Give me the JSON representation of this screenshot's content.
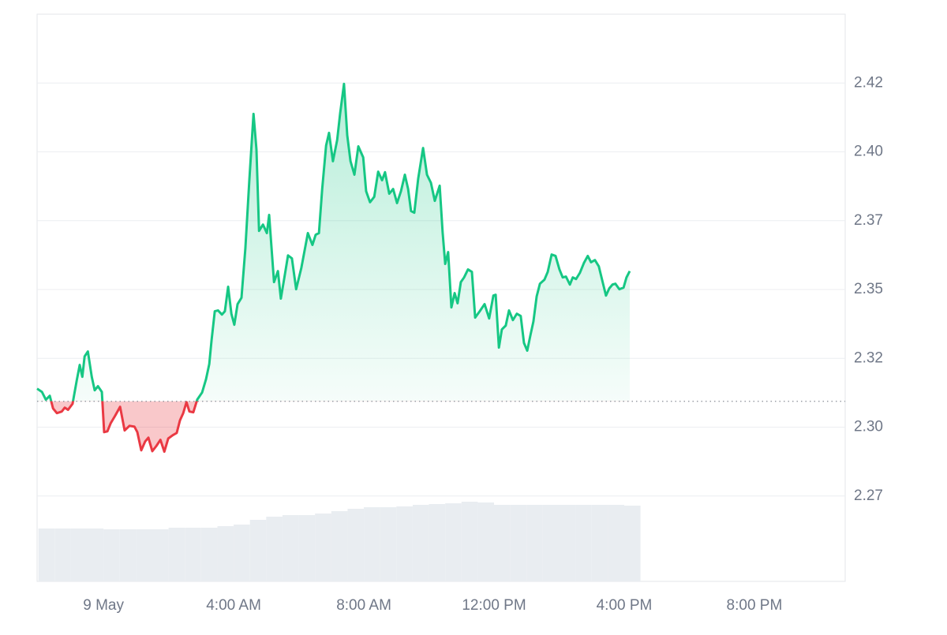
{
  "chart_data": {
    "type": "line",
    "x": [
      -2.04,
      -1.89,
      -1.77,
      -1.65,
      -1.55,
      -1.43,
      -1.28,
      -1.19,
      -1.09,
      -0.95,
      -0.82,
      -0.73,
      -0.65,
      -0.58,
      -0.48,
      -0.36,
      -0.27,
      -0.17,
      -0.05,
      0.02,
      0.12,
      0.22,
      0.36,
      0.51,
      0.65,
      0.8,
      0.95,
      1.04,
      1.16,
      1.28,
      1.38,
      1.5,
      1.62,
      1.75,
      1.87,
      1.99,
      2.13,
      2.25,
      2.35,
      2.45,
      2.55,
      2.64,
      2.76,
      2.88,
      3.03,
      3.15,
      3.25,
      3.32,
      3.42,
      3.52,
      3.64,
      3.73,
      3.83,
      3.93,
      4.02,
      4.12,
      4.24,
      4.36,
      4.48,
      4.61,
      4.7,
      4.78,
      4.9,
      5.02,
      5.09,
      5.24,
      5.36,
      5.45,
      5.58,
      5.67,
      5.79,
      5.92,
      6.08,
      6.28,
      6.42,
      6.52,
      6.62,
      6.72,
      6.84,
      6.93,
      7.05,
      7.18,
      7.27,
      7.39,
      7.49,
      7.59,
      7.71,
      7.83,
      7.98,
      8.07,
      8.19,
      8.32,
      8.44,
      8.56,
      8.65,
      8.78,
      8.9,
      9.02,
      9.14,
      9.26,
      9.36,
      9.45,
      9.55,
      9.67,
      9.82,
      9.94,
      10.06,
      10.18,
      10.33,
      10.42,
      10.5,
      10.59,
      10.69,
      10.79,
      10.88,
      10.98,
      11.08,
      11.2,
      11.32,
      11.42,
      11.56,
      11.71,
      11.85,
      11.98,
      12.05,
      12.15,
      12.24,
      12.36,
      12.46,
      12.58,
      12.7,
      12.82,
      12.92,
      13.02,
      13.12,
      13.21,
      13.31,
      13.41,
      13.55,
      13.65,
      13.77,
      13.89,
      14.01,
      14.11,
      14.21,
      14.33,
      14.42,
      14.52,
      14.64,
      14.76,
      14.88,
      14.98,
      15.1,
      15.22,
      15.35,
      15.44,
      15.54,
      15.64,
      15.73,
      15.85,
      15.98,
      16.07,
      16.17
    ],
    "values": [
      2.314,
      2.3128,
      2.31,
      2.3114,
      2.3068,
      2.3051,
      2.3057,
      2.3071,
      2.3063,
      2.3085,
      2.3171,
      2.3226,
      2.3183,
      2.3257,
      2.3275,
      2.3183,
      2.3134,
      2.3149,
      2.3128,
      2.2982,
      2.2985,
      2.3014,
      2.3042,
      2.3074,
      2.2988,
      2.3005,
      2.3002,
      2.2982,
      2.2916,
      2.2948,
      2.2962,
      2.2913,
      2.2931,
      2.2954,
      2.2911,
      2.2959,
      2.2971,
      2.2979,
      2.3025,
      2.3051,
      2.3091,
      2.3057,
      2.3054,
      2.31,
      2.3126,
      2.3174,
      2.3229,
      2.3315,
      2.3421,
      2.3424,
      2.3409,
      2.3421,
      2.351,
      2.3412,
      2.3372,
      2.3447,
      2.347,
      2.365,
      2.3894,
      2.4138,
      2.4009,
      2.3713,
      2.3736,
      2.3705,
      2.3771,
      2.3527,
      2.3567,
      2.3467,
      2.3559,
      2.3624,
      2.3613,
      2.3501,
      2.3579,
      2.3705,
      2.3662,
      2.3699,
      2.3705,
      2.3865,
      2.4023,
      2.4069,
      2.3966,
      2.4043,
      2.4138,
      2.4247,
      2.406,
      2.3966,
      2.3917,
      2.402,
      2.398,
      2.3857,
      2.3817,
      2.3837,
      2.3928,
      2.3897,
      2.3926,
      2.3848,
      2.3865,
      2.3814,
      2.3857,
      2.3917,
      2.3865,
      2.3785,
      2.3779,
      2.3903,
      2.4014,
      2.3917,
      2.3888,
      2.3822,
      2.3877,
      2.3708,
      2.3593,
      2.3636,
      2.3435,
      2.3487,
      2.345,
      2.3527,
      2.3544,
      2.3573,
      2.3564,
      2.3398,
      2.3421,
      2.3447,
      2.3395,
      2.3478,
      2.3481,
      2.3289,
      2.3355,
      2.3369,
      2.3424,
      2.3389,
      2.3412,
      2.3404,
      2.3306,
      2.3278,
      2.3335,
      2.3384,
      2.3475,
      2.3521,
      2.3536,
      2.3564,
      2.3627,
      2.3622,
      2.3573,
      2.3544,
      2.3547,
      2.3518,
      2.3544,
      2.3538,
      2.3561,
      2.3596,
      2.3622,
      2.3599,
      2.3607,
      2.3584,
      2.3521,
      2.3478,
      2.3504,
      2.3518,
      2.3521,
      2.3501,
      2.3507,
      2.3544,
      2.3567
    ],
    "baseline": 2.3094,
    "up_color": "#16c784",
    "down_color": "#ea3943",
    "volume": {
      "x": [
        -2,
        -1.5,
        -1,
        -0.5,
        0,
        0.5,
        1,
        1.5,
        2,
        2.5,
        3,
        3.5,
        4,
        4.5,
        5,
        5.5,
        6,
        6.5,
        7,
        7.5,
        8,
        8.5,
        9,
        9.5,
        10,
        10.5,
        11,
        11.5,
        12,
        12.5,
        13,
        13.5,
        14,
        14.5,
        15,
        15.5,
        16
      ],
      "values": [
        67,
        67,
        67,
        67,
        66,
        66,
        66,
        66,
        68,
        68,
        68,
        70,
        72,
        78,
        82,
        84,
        84,
        86,
        89,
        92,
        94,
        94,
        95,
        97,
        98,
        99,
        101,
        100,
        97,
        97,
        97,
        97,
        97,
        97,
        97,
        97,
        96
      ],
      "lim": [
        0,
        300
      ],
      "color": "#e9edf1"
    },
    "xlim": [
      -2.04,
      22.79
    ],
    "ylim": [
      2.244,
      2.45
    ],
    "xticks": [
      {
        "value": 0,
        "label": "9 May"
      },
      {
        "value": 4,
        "label": "4:00 AM"
      },
      {
        "value": 8,
        "label": "8:00 AM"
      },
      {
        "value": 12,
        "label": "12:00 PM"
      },
      {
        "value": 16,
        "label": "4:00 PM"
      },
      {
        "value": 20,
        "label": "8:00 PM"
      }
    ],
    "yticks": [
      {
        "value": 2.275,
        "label": "2.27"
      },
      {
        "value": 2.3,
        "label": "2.30"
      },
      {
        "value": 2.325,
        "label": "2.32"
      },
      {
        "value": 2.35,
        "label": "2.35"
      },
      {
        "value": 2.375,
        "label": "2.37"
      },
      {
        "value": 2.4,
        "label": "2.40"
      },
      {
        "value": 2.425,
        "label": "2.42"
      }
    ],
    "grid": true
  }
}
